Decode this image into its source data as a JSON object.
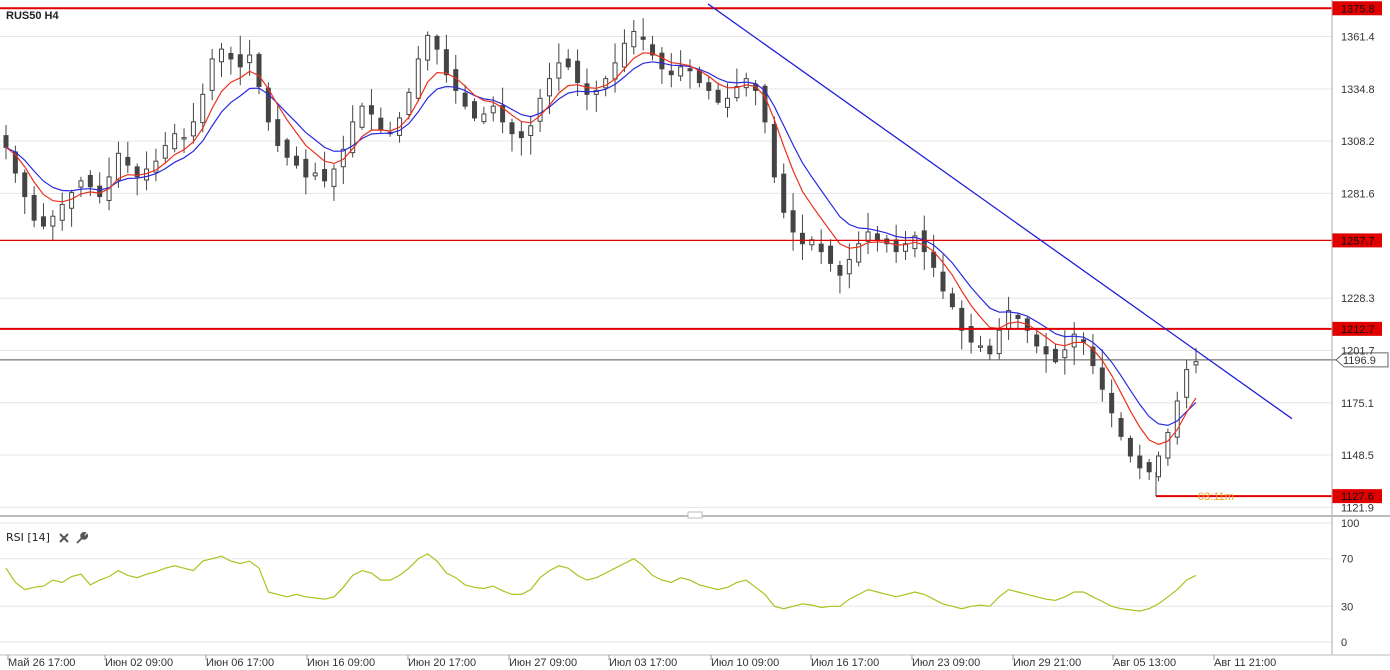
{
  "chart_title": "RUS50 H4",
  "rsi_label": "RSI [14]",
  "colors": {
    "ema_fast": "#e8321e",
    "ema_slow": "#2a2ae0",
    "hline": "#e00000",
    "trendline": "#2020d8",
    "rsi": "#a8c41e",
    "candle": "#444444",
    "price_line": "#555555",
    "timer": "#f0a020"
  },
  "icons": {
    "close": "close-icon",
    "settings": "wrench-icon"
  },
  "timer_text": "03:11m",
  "chart_data": [
    {
      "type": "candlestick",
      "title": "RUS50 H4",
      "ylim": [
        1118,
        1380
      ],
      "y_ticks": [
        "1361.4",
        "1334.8",
        "1308.2",
        "1281.6",
        "1228.3",
        "1201.7",
        "1175.1",
        "1148.5",
        "1121.9"
      ],
      "x_ticks": [
        "Май 26 17:00",
        "Июн 02 09:00",
        "Июн 06 17:00",
        "Июн 16 09:00",
        "Июн 20 17:00",
        "Июн 27 09:00",
        "Июл 03 17:00",
        "Июл 10 09:00",
        "Июл 16 17:00",
        "Июл 23 09:00",
        "Июл 29 21:00",
        "Авг 05 13:00",
        "Авг 11 21:00"
      ],
      "horizontal_levels": [
        "1375.8",
        "1257.7",
        "1212.7",
        "1127.6"
      ],
      "current_price": "1196.9",
      "series_close": [
        1305,
        1292,
        1280,
        1268,
        1265,
        1270,
        1276,
        1282,
        1288,
        1285,
        1280,
        1290,
        1302,
        1296,
        1290,
        1294,
        1298,
        1306,
        1312,
        1310,
        1318,
        1332,
        1350,
        1355,
        1350,
        1346,
        1352,
        1336,
        1318,
        1306,
        1300,
        1296,
        1290,
        1292,
        1288,
        1294,
        1304,
        1318,
        1326,
        1322,
        1314,
        1312,
        1320,
        1333,
        1350,
        1362,
        1355,
        1342,
        1334,
        1326,
        1320,
        1322,
        1326,
        1318,
        1312,
        1310,
        1316,
        1330,
        1340,
        1348,
        1346,
        1338,
        1332,
        1334,
        1340,
        1348,
        1358,
        1364,
        1360,
        1352,
        1345,
        1342,
        1346,
        1344,
        1338,
        1334,
        1328,
        1330,
        1336,
        1340,
        1334,
        1318,
        1290,
        1272,
        1262,
        1256,
        1258,
        1252,
        1246,
        1240,
        1248,
        1256,
        1262,
        1258,
        1256,
        1252,
        1256,
        1260,
        1252,
        1244,
        1232,
        1224,
        1212,
        1206,
        1204,
        1200,
        1212,
        1222,
        1218,
        1212,
        1204,
        1200,
        1196,
        1202,
        1210,
        1206,
        1194,
        1182,
        1170,
        1158,
        1148,
        1142,
        1140,
        1148,
        1160,
        1176,
        1192,
        1196
      ],
      "ema_fast_last": 1178,
      "ema_slow_last": 1176,
      "trendline": {
        "from": {
          "x": "Июл 03 17:00",
          "y": 1378
        },
        "to": {
          "x": "Авг 11 21:00",
          "y": 1167
        }
      }
    },
    {
      "type": "line",
      "title": "RSI [14]",
      "ylim": [
        0,
        100
      ],
      "y_ticks": [
        "100",
        "70",
        "30",
        "0"
      ],
      "series": [
        {
          "name": "RSI [14]",
          "values": [
            62,
            50,
            44,
            46,
            47,
            52,
            50,
            55,
            57,
            48,
            52,
            55,
            60,
            56,
            54,
            57,
            59,
            62,
            64,
            62,
            60,
            68,
            70,
            72,
            68,
            66,
            68,
            62,
            42,
            40,
            38,
            40,
            38,
            37,
            36,
            38,
            46,
            56,
            60,
            58,
            52,
            52,
            56,
            62,
            70,
            74,
            68,
            58,
            54,
            48,
            46,
            45,
            47,
            43,
            40,
            40,
            44,
            54,
            60,
            64,
            62,
            56,
            52,
            54,
            58,
            62,
            66,
            70,
            64,
            56,
            52,
            50,
            54,
            52,
            48,
            46,
            44,
            46,
            50,
            52,
            46,
            40,
            30,
            28,
            30,
            32,
            31,
            29,
            30,
            30,
            36,
            40,
            44,
            42,
            40,
            38,
            40,
            42,
            40,
            36,
            32,
            30,
            28,
            30,
            31,
            30,
            38,
            44,
            42,
            40,
            38,
            36,
            35,
            38,
            42,
            42,
            38,
            34,
            30,
            28,
            27,
            26,
            28,
            32,
            38,
            44,
            52,
            56
          ]
        }
      ]
    }
  ]
}
